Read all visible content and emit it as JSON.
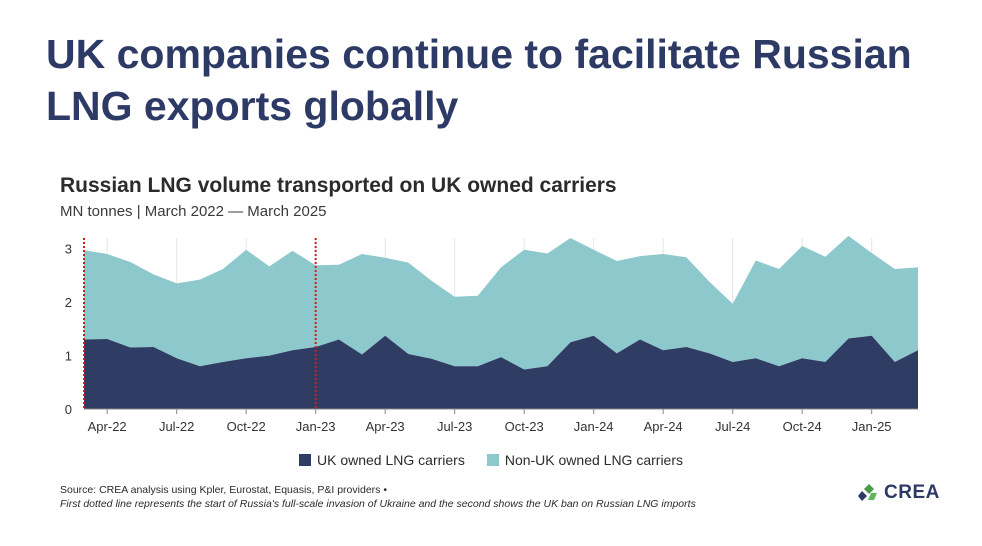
{
  "headline": "UK companies continue to facilitate Russian LNG exports globally",
  "colors": {
    "headline": "#2d3a66",
    "uk_owned": "#2f3c63",
    "non_uk_owned": "#8dc8cc",
    "event_line": "#cc1f1f"
  },
  "chart_data": {
    "type": "area",
    "title": "Russian LNG volume transported on UK owned carriers",
    "subtitle": "MN tonnes | March 2022 — March 2025",
    "stacked": true,
    "ylim": [
      0,
      3.2
    ],
    "yticks": [
      "0",
      "1",
      "2",
      "3"
    ],
    "x": [
      "Mar-22",
      "Apr-22",
      "May-22",
      "Jun-22",
      "Jul-22",
      "Aug-22",
      "Sep-22",
      "Oct-22",
      "Nov-22",
      "Dec-22",
      "Jan-23",
      "Feb-23",
      "Mar-23",
      "Apr-23",
      "May-23",
      "Jun-23",
      "Jul-23",
      "Aug-23",
      "Sep-23",
      "Oct-23",
      "Nov-23",
      "Dec-23",
      "Jan-24",
      "Feb-24",
      "Mar-24",
      "Apr-24",
      "May-24",
      "Jun-24",
      "Jul-24",
      "Aug-24",
      "Sep-24",
      "Oct-24",
      "Nov-24",
      "Dec-24",
      "Jan-25",
      "Feb-25",
      "Mar-25"
    ],
    "xtick_labels": [
      "Apr-22",
      "Jul-22",
      "Oct-22",
      "Jan-23",
      "Apr-23",
      "Jul-23",
      "Oct-23",
      "Jan-24",
      "Apr-24",
      "Jul-24",
      "Oct-24",
      "Jan-25"
    ],
    "series": [
      {
        "name": "UK owned LNG carriers",
        "values": [
          1.3,
          1.31,
          1.15,
          1.16,
          0.95,
          0.8,
          0.88,
          0.95,
          1.0,
          1.1,
          1.16,
          1.3,
          1.02,
          1.37,
          1.03,
          0.94,
          0.8,
          0.8,
          0.97,
          0.74,
          0.8,
          1.25,
          1.37,
          1.04,
          1.3,
          1.1,
          1.16,
          1.04,
          0.88,
          0.95,
          0.8,
          0.95,
          0.88,
          1.32,
          1.37,
          0.88,
          1.1
        ]
      },
      {
        "name": "Non-UK owned LNG carriers",
        "values": [
          1.67,
          1.59,
          1.6,
          1.36,
          1.4,
          1.62,
          1.74,
          2.03,
          1.67,
          1.86,
          1.53,
          1.4,
          1.88,
          1.46,
          1.71,
          1.46,
          1.3,
          1.32,
          1.68,
          2.24,
          2.11,
          1.95,
          1.61,
          1.73,
          1.56,
          1.8,
          1.68,
          1.34,
          1.09,
          1.83,
          1.82,
          2.1,
          1.97,
          1.92,
          1.55,
          1.74,
          1.55
        ]
      }
    ],
    "event_lines": [
      "Mar-22",
      "Jan-23"
    ],
    "grid": "vertical"
  },
  "footer": {
    "source": "Source: CREA analysis using Kpler, Eurostat, Equasis, P&I providers •",
    "note": "First dotted line represents the start of Russia's full-scale invasion of Ukraine and the second shows the UK ban on Russian LNG imports",
    "logo_text": "CREA"
  }
}
